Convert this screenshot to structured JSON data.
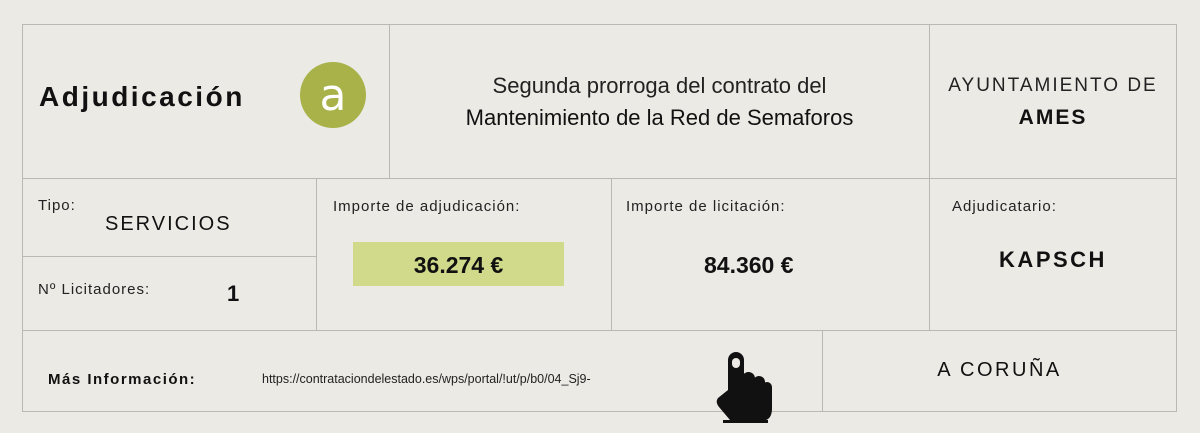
{
  "header": {
    "title": "Adjudicación",
    "badge_letter": "a",
    "contract_line1": "Segunda prorroga del contrato del",
    "contract_line2": "Mantenimiento de la Red de Semaforos",
    "council_line1": "AYUNTAMIENTO DE",
    "council_line2": "AMES"
  },
  "details": {
    "tipo_label": "Tipo:",
    "tipo_value": "SERVICIOS",
    "licitadores_label": "Nº Licitadores:",
    "licitadores_value": "1",
    "importe_adj_label": "Importe de adjudicación:",
    "importe_adj_value": "36.274 €",
    "importe_lic_label": "Importe de licitación:",
    "importe_lic_value": "84.360 €",
    "adjudicatario_label": "Adjudicatario:",
    "adjudicatario_value": "KAPSCH"
  },
  "footer": {
    "mas_info_label": "Más Información:",
    "url": "https://contrataciondelestado.es/wps/portal/!ut/p/b0/04_Sj9-",
    "province": "A CORUÑA"
  },
  "colors": {
    "badge": "#a8b248",
    "highlight": "#d1d98a",
    "background": "#ebeae5"
  },
  "icons": {
    "pointer": "hand-pointer-icon"
  }
}
